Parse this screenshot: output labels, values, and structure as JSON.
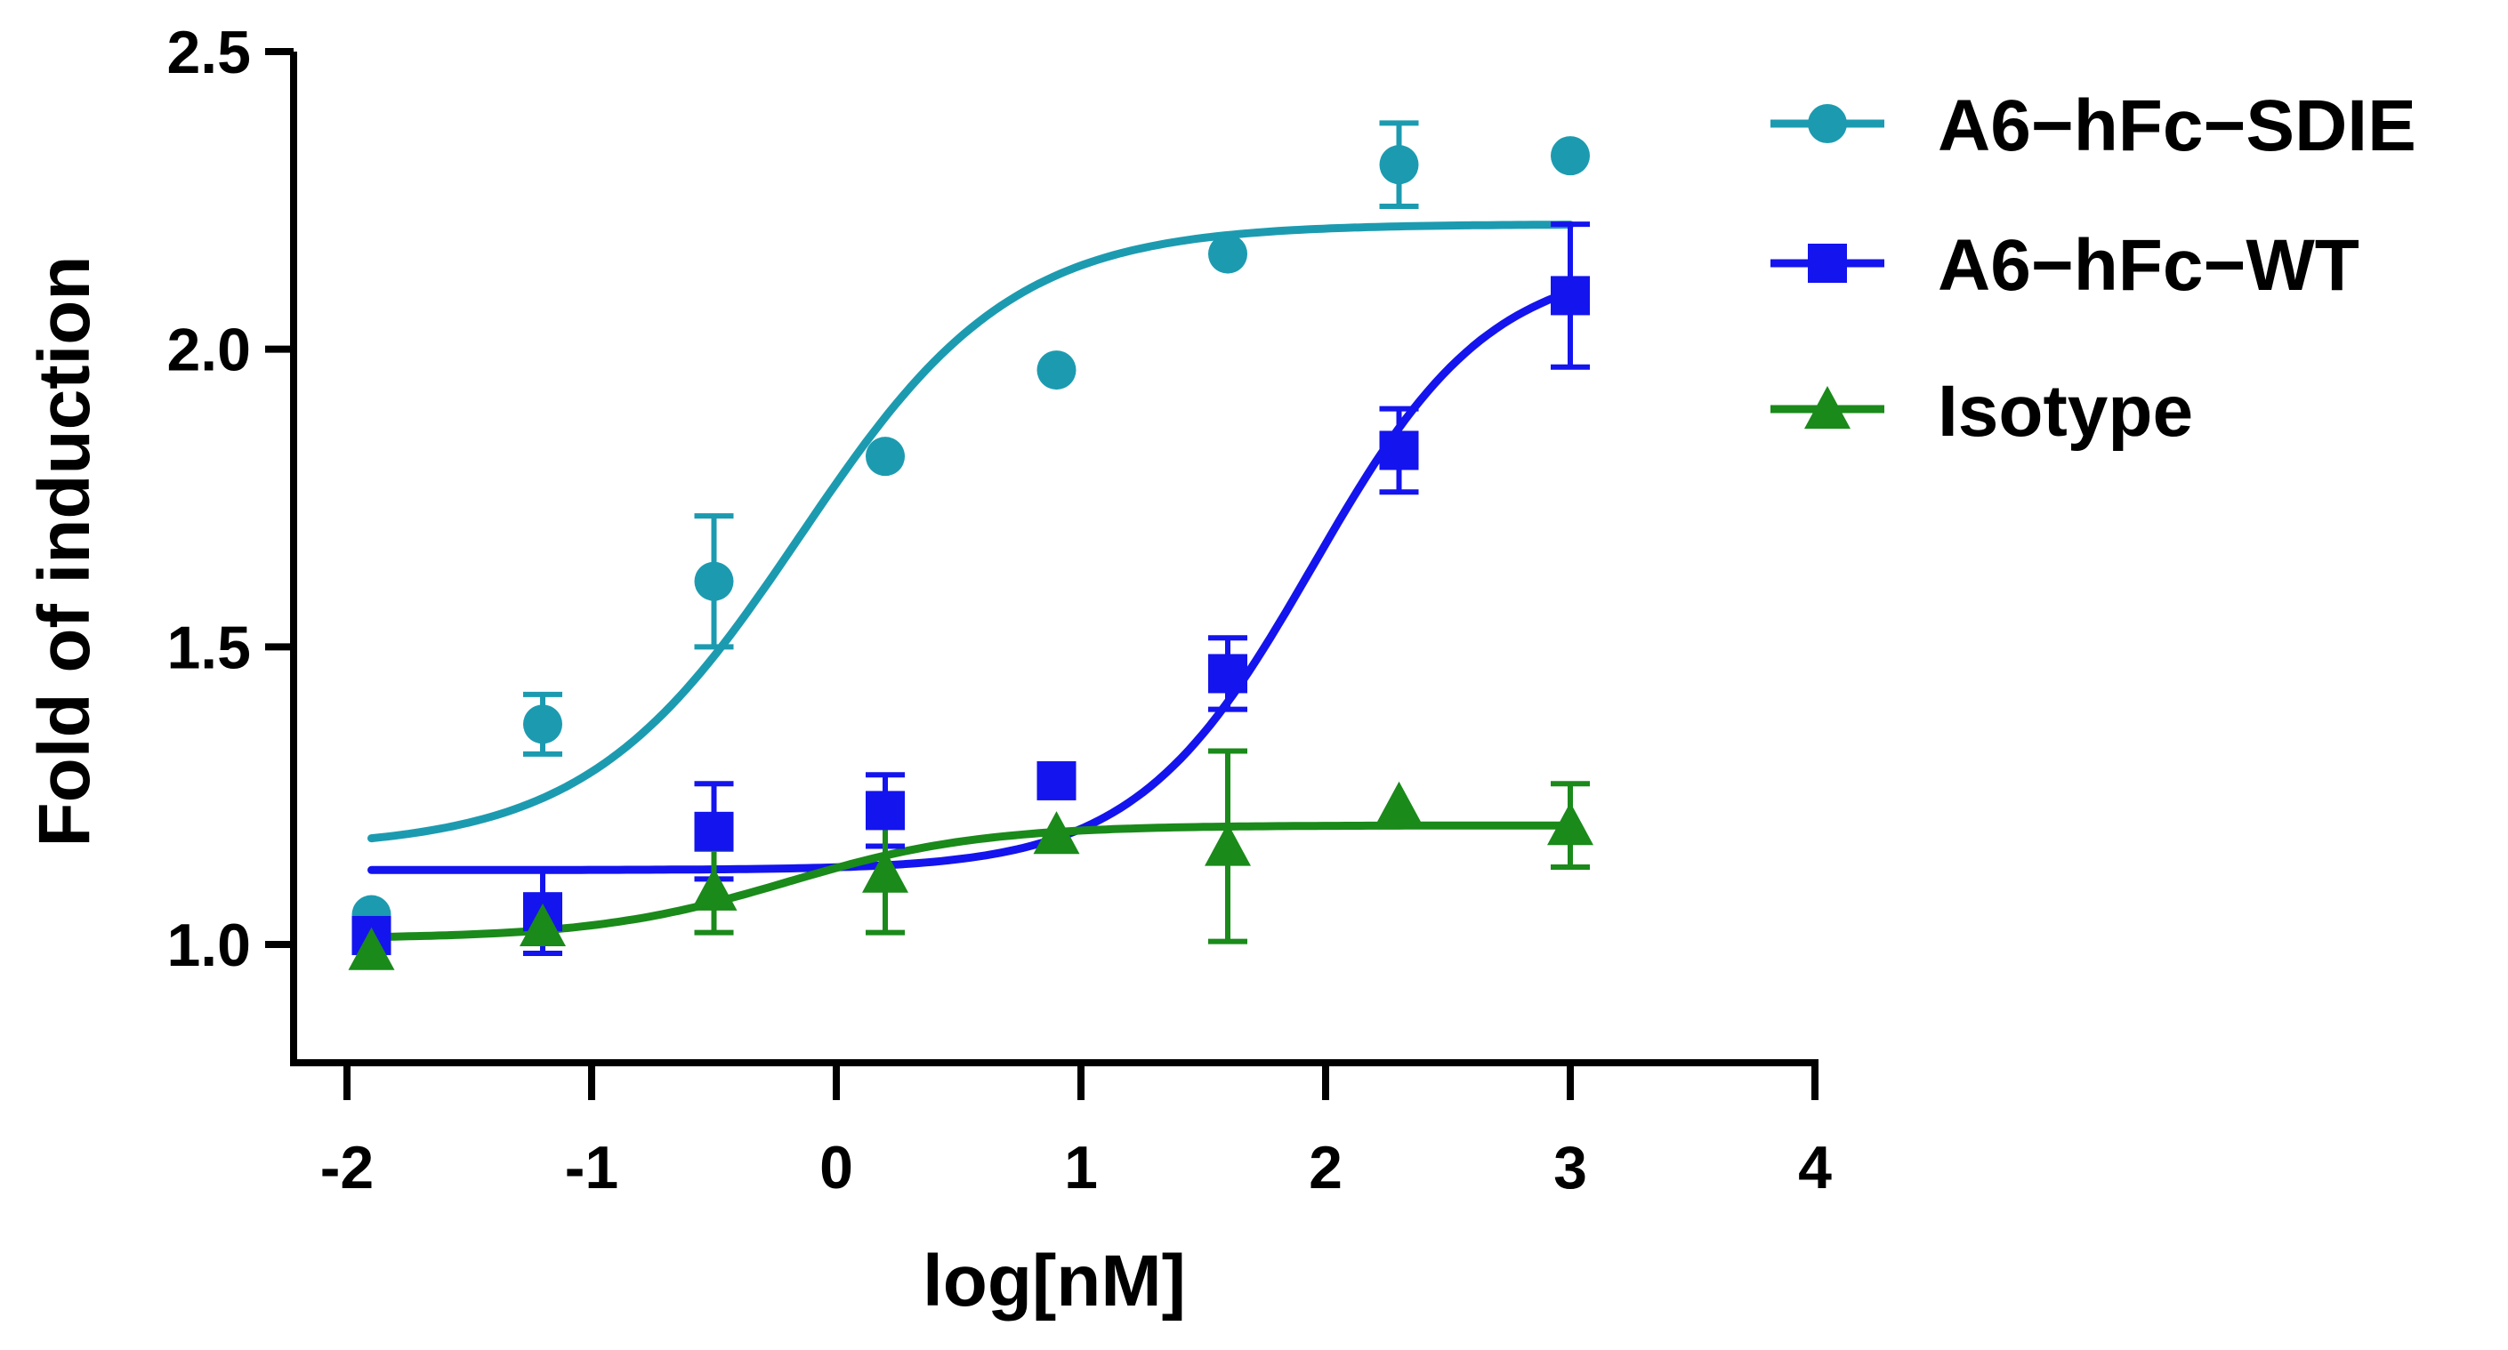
{
  "chart_data": {
    "type": "scatter",
    "title": "",
    "xlabel": "log[nM]",
    "ylabel": "Fold of induction",
    "xlim": [
      -2,
      4
    ],
    "ylim": [
      0.8,
      2.5
    ],
    "xticks": [
      -2,
      -1,
      0,
      1,
      2,
      3,
      4
    ],
    "xtick_labels": [
      "-2",
      "-1",
      "0",
      "1",
      "2",
      "3",
      "4"
    ],
    "yticks": [
      1.0,
      1.5,
      2.0,
      2.5
    ],
    "ytick_labels": [
      "1.0",
      "1.5",
      "2.0",
      "2.5"
    ],
    "grid": false,
    "legend_position": "top-right-outside",
    "x": [
      -1.9,
      -1.2,
      -0.5,
      0.2,
      0.9,
      1.6,
      2.3,
      3.0
    ],
    "series": [
      {
        "name": "A6−hFc−SDIE",
        "color": "#1c9bb0",
        "marker": "circle",
        "values": [
          1.05,
          1.37,
          1.61,
          1.82,
          1.965,
          2.16,
          2.31,
          2.325
        ],
        "error": [
          null,
          0.05,
          0.11,
          null,
          null,
          null,
          0.07,
          null
        ],
        "fit": {
          "model": "4PL",
          "bottom": 1.16,
          "top": 2.21,
          "logEC50": -0.15,
          "hill": 1.0,
          "x_range": [
            -1.9,
            3.0
          ]
        }
      },
      {
        "name": "A6−hFc−WT",
        "color": "#1414ee",
        "marker": "square",
        "values": [
          1.015,
          1.055,
          1.19,
          1.225,
          1.275,
          1.455,
          1.83,
          2.09
        ],
        "error": [
          null,
          0.07,
          0.08,
          0.06,
          null,
          0.06,
          0.07,
          0.12
        ],
        "fit": {
          "model": "4PL",
          "bottom": 1.125,
          "top": 2.15,
          "logEC50": 1.95,
          "hill": 1.2,
          "x_range": [
            -1.9,
            3.0
          ]
        }
      },
      {
        "name": "Isotype",
        "color": "#1a8a1a",
        "marker": "triangle",
        "values": [
          0.99,
          1.03,
          1.09,
          1.12,
          1.185,
          1.165,
          1.235,
          1.2
        ],
        "error": [
          null,
          null,
          0.07,
          0.1,
          null,
          0.16,
          null,
          0.07
        ],
        "fit": {
          "model": "4PL",
          "bottom": 1.01,
          "top": 1.2,
          "logEC50": -0.2,
          "hill": 1.1,
          "x_range": [
            -1.9,
            3.0
          ]
        }
      }
    ]
  }
}
